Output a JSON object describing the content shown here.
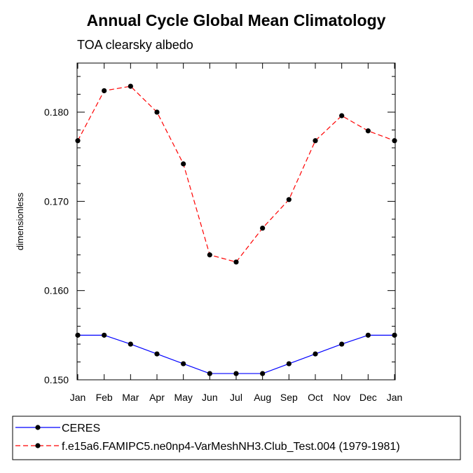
{
  "chart_data": {
    "type": "line",
    "title": "Annual Cycle Global Mean Climatology",
    "subtitle": "TOA clearsky albedo",
    "xlabel": "",
    "ylabel": "dimensionless",
    "categories": [
      "Jan",
      "Feb",
      "Mar",
      "Apr",
      "May",
      "Jun",
      "Jul",
      "Aug",
      "Sep",
      "Oct",
      "Nov",
      "Dec",
      "Jan"
    ],
    "ylim": [
      0.15,
      0.1855
    ],
    "yticks": [
      0.15,
      0.16,
      0.17,
      0.18
    ],
    "ytick_labels": [
      "0.150",
      "0.160",
      "0.170",
      "0.180"
    ],
    "series": [
      {
        "name": "CERES",
        "color": "#0000ff",
        "dash": "solid",
        "marker": "filled-circle",
        "values": [
          0.155,
          0.155,
          0.154,
          0.1529,
          0.1518,
          0.1507,
          0.1507,
          0.1507,
          0.1518,
          0.1529,
          0.154,
          0.155,
          0.155
        ]
      },
      {
        "name": "f.e15a6.FAMIPC5.ne0np4-VarMeshNH3.Club_Test.004 (1979-1981)",
        "color": "#ff0000",
        "dash": "dashed",
        "marker": "filled-circle",
        "values": [
          0.1768,
          0.1824,
          0.1829,
          0.18,
          0.1742,
          0.164,
          0.1632,
          0.167,
          0.1702,
          0.1768,
          0.1796,
          0.1779,
          0.1768
        ]
      }
    ],
    "grid": false,
    "legend": "bottom-left"
  }
}
